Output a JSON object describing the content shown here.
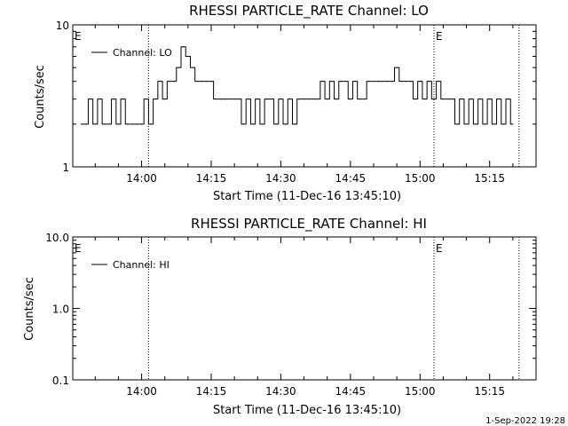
{
  "chart_data": [
    {
      "type": "line",
      "title": "RHESSI PARTICLE_RATE Channel: LO",
      "xlabel": "Start Time (11-Dec-16 13:45:10)",
      "ylabel": "Counts/sec",
      "y_scale": "log",
      "ylim": [
        1,
        10
      ],
      "y_ticks": [
        1,
        10
      ],
      "y_tick_labels": [
        "1",
        "10"
      ],
      "xlim": [
        "13:45:10",
        "15:25:00"
      ],
      "x_ticks": [
        "14:00",
        "14:15",
        "14:30",
        "14:45",
        "15:00",
        "15:15"
      ],
      "legend_position": "top-left",
      "markers": [
        {
          "label": "E",
          "time": "13:45:10"
        },
        {
          "label": "",
          "time": "14:01:30"
        },
        {
          "label": "E",
          "time": "15:03:00"
        },
        {
          "label": "",
          "time": "15:21:20"
        }
      ],
      "series": [
        {
          "name": "Channel: LO",
          "x": [
            "13:47:00",
            "13:48:00",
            "13:49:00",
            "13:50:00",
            "13:51:00",
            "13:52:00",
            "13:53:00",
            "13:54:00",
            "13:55:00",
            "13:56:00",
            "13:57:00",
            "13:58:00",
            "13:59:00",
            "14:00:00",
            "14:01:00",
            "14:02:00",
            "14:03:00",
            "14:04:00",
            "14:05:00",
            "14:06:00",
            "14:07:00",
            "14:08:00",
            "14:09:00",
            "14:10:00",
            "14:11:00",
            "14:12:00",
            "14:13:00",
            "14:14:00",
            "14:15:00",
            "14:16:00",
            "14:17:00",
            "14:18:00",
            "14:19:00",
            "14:20:00",
            "14:21:00",
            "14:22:00",
            "14:23:00",
            "14:24:00",
            "14:25:00",
            "14:26:00",
            "14:27:00",
            "14:28:00",
            "14:29:00",
            "14:30:00",
            "14:31:00",
            "14:32:00",
            "14:33:00",
            "14:34:00",
            "14:35:00",
            "14:36:00",
            "14:37:00",
            "14:38:00",
            "14:39:00",
            "14:40:00",
            "14:41:00",
            "14:42:00",
            "14:43:00",
            "14:44:00",
            "14:45:00",
            "14:46:00",
            "14:47:00",
            "14:48:00",
            "14:49:00",
            "14:50:00",
            "14:51:00",
            "14:52:00",
            "14:53:00",
            "14:54:00",
            "14:55:00",
            "14:56:00",
            "14:57:00",
            "14:58:00",
            "14:59:00",
            "15:00:00",
            "15:01:00",
            "15:02:00",
            "15:03:00",
            "15:04:00",
            "15:05:00",
            "15:06:00",
            "15:07:00",
            "15:08:00",
            "15:09:00",
            "15:10:00",
            "15:11:00",
            "15:12:00",
            "15:13:00",
            "15:14:00",
            "15:15:00",
            "15:16:00",
            "15:17:00",
            "15:18:00",
            "15:19:00",
            "15:20:00"
          ],
          "y": [
            2,
            2,
            3,
            2,
            3,
            2,
            2,
            3,
            2,
            3,
            2,
            2,
            2,
            2,
            3,
            2,
            3,
            4,
            3,
            4,
            4,
            5,
            7,
            6,
            5,
            4,
            4,
            4,
            4,
            3,
            3,
            3,
            3,
            3,
            3,
            2,
            3,
            2,
            3,
            2,
            3,
            3,
            2,
            3,
            2,
            3,
            2,
            3,
            3,
            3,
            3,
            3,
            4,
            3,
            4,
            3,
            4,
            4,
            3,
            4,
            3,
            3,
            4,
            4,
            4,
            4,
            4,
            4,
            5,
            4,
            4,
            4,
            3,
            4,
            3,
            4,
            3,
            4,
            3,
            3,
            3,
            2,
            3,
            2,
            3,
            2,
            3,
            2,
            3,
            2,
            3,
            2,
            3,
            2
          ]
        }
      ]
    },
    {
      "type": "line",
      "title": "RHESSI PARTICLE_RATE Channel: HI",
      "xlabel": "Start Time (11-Dec-16 13:45:10)",
      "ylabel": "Counts/sec",
      "y_scale": "log",
      "ylim": [
        0.1,
        10
      ],
      "y_ticks": [
        0.1,
        1,
        10
      ],
      "y_tick_labels": [
        "0.1",
        "1.0",
        "10.0"
      ],
      "xlim": [
        "13:45:10",
        "15:25:00"
      ],
      "x_ticks": [
        "14:00",
        "14:15",
        "14:30",
        "14:45",
        "15:00",
        "15:15"
      ],
      "legend_position": "top-left",
      "markers": [
        {
          "label": "E",
          "time": "13:45:10"
        },
        {
          "label": "",
          "time": "14:01:30"
        },
        {
          "label": "E",
          "time": "15:03:00"
        },
        {
          "label": "",
          "time": "15:21:20"
        }
      ],
      "series": [
        {
          "name": "Channel: HI",
          "x": [],
          "y": []
        }
      ]
    }
  ],
  "footer": {
    "timestamp": "1-Sep-2022 19:28"
  }
}
